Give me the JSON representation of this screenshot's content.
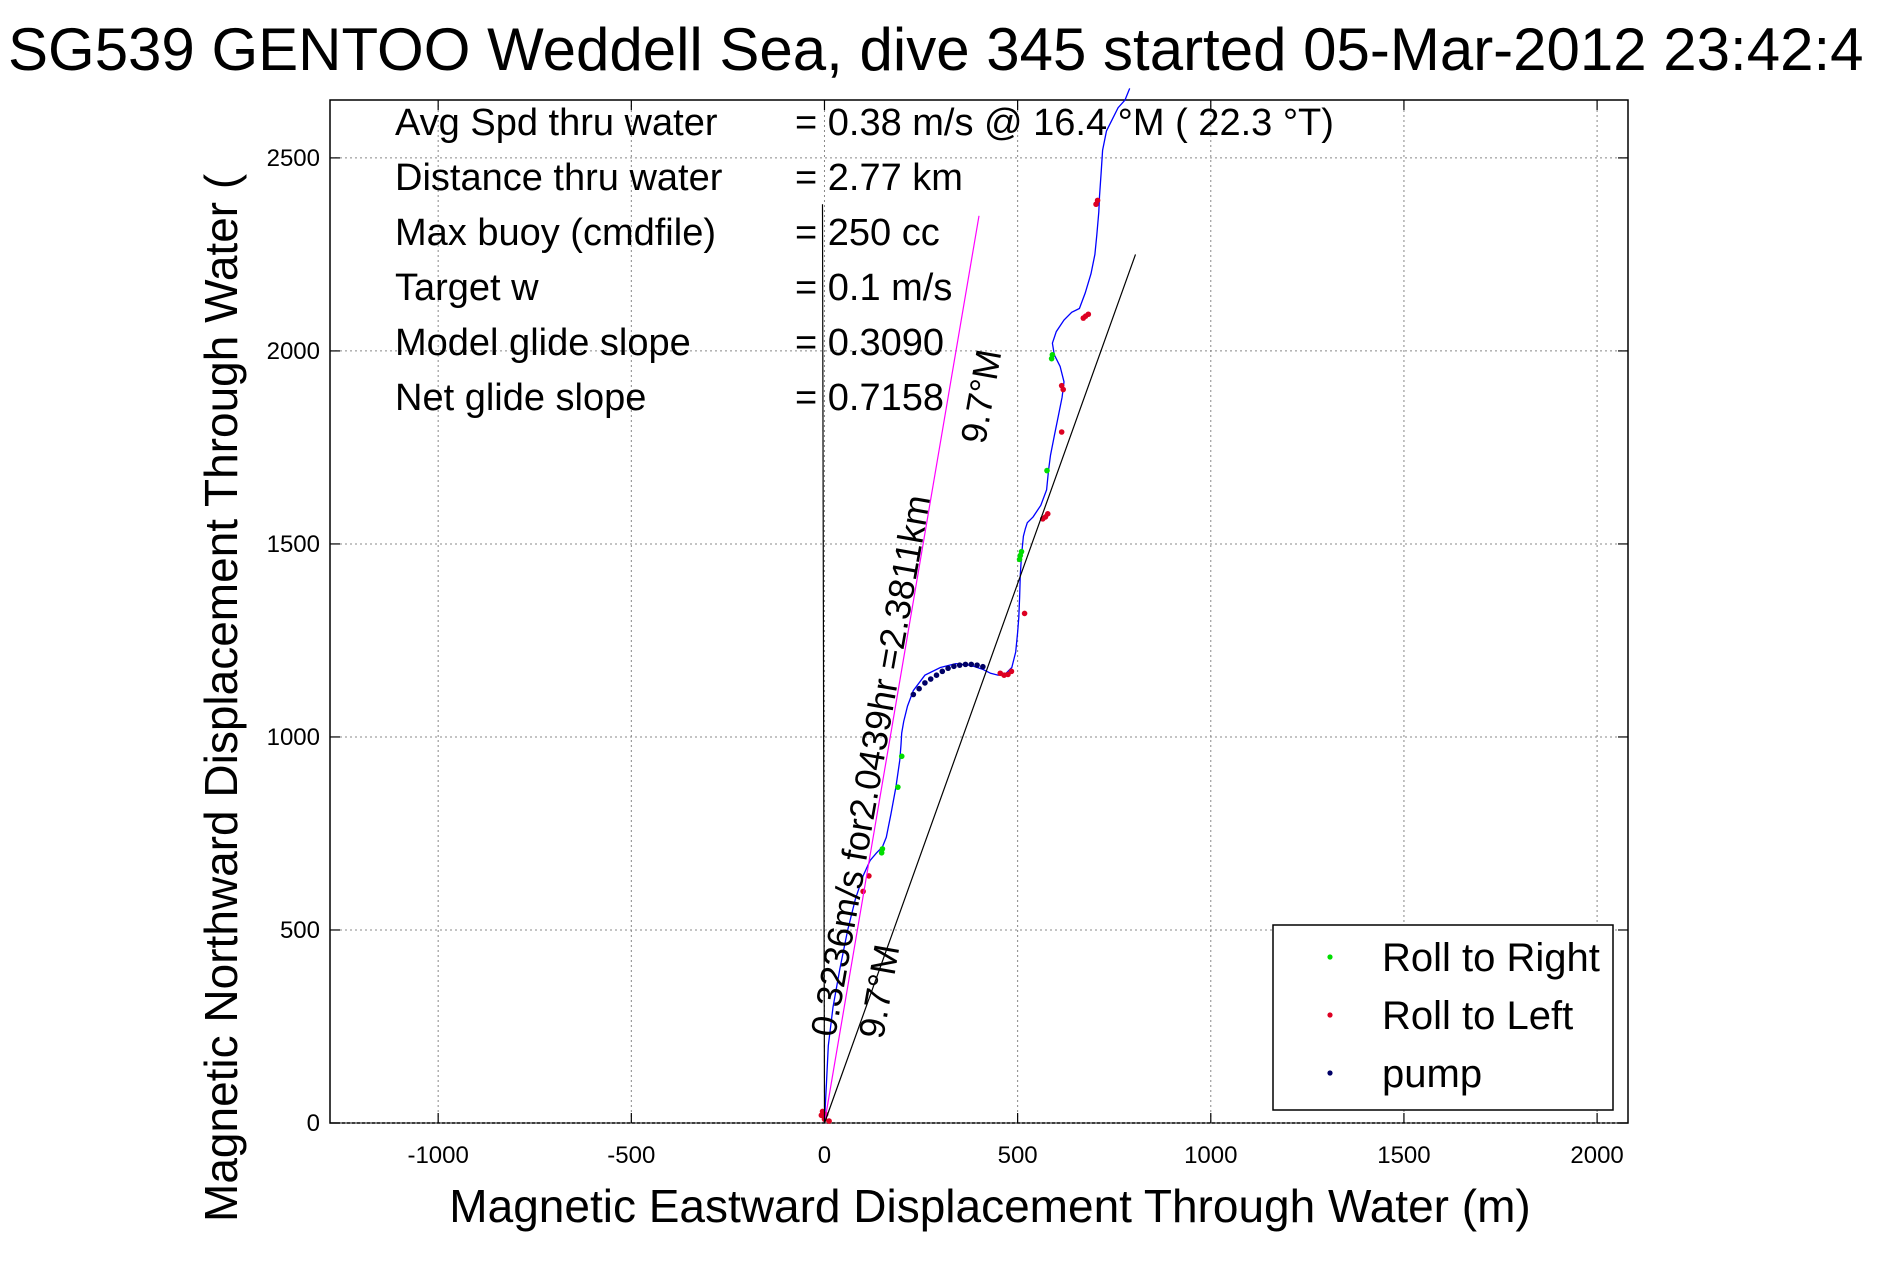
{
  "chart_data": {
    "type": "line",
    "title": "SG539 GENTOO Weddell Sea, dive 345 started 05-Mar-2012 23:42:4",
    "xlabel": "Magnetic Eastward Displacement Through Water (m)",
    "ylabel": "Magnetic Northward Displacement Through Water (m)",
    "ylabel_visible": "Magnetic Northward Displacement Through Water (",
    "xlim": [
      -1280,
      2080
    ],
    "ylim": [
      0,
      2650
    ],
    "xticks": [
      -1000,
      -500,
      0,
      500,
      1000,
      1500,
      2000
    ],
    "xtick_labels": [
      "-1000",
      "-500",
      "0",
      "500",
      "1000",
      "1500",
      "2000"
    ],
    "yticks": [
      0,
      500,
      1000,
      1500,
      2000,
      2500
    ],
    "ytick_labels": [
      "0",
      "500",
      "1000",
      "1500",
      "2000",
      "2500"
    ],
    "grid": true,
    "legend_position": "bottom-right",
    "stats": [
      {
        "label": "Avg Spd thru water",
        "value": "=  0.38 m/s @  16.4 °M ( 22.3 °T)"
      },
      {
        "label": "Distance thru water",
        "value": "=  2.77 km"
      },
      {
        "label": "Max buoy (cmdfile)",
        "value": "= 250 cc"
      },
      {
        "label": "Target w",
        "value": "= 0.1 m/s"
      },
      {
        "label": "Model glide slope",
        "value": "= 0.3090"
      },
      {
        "label": "Net glide slope",
        "value": "= 0.7158"
      }
    ],
    "annotations": [
      {
        "text": "0.3236m/s for2.0439hr =2.3811km",
        "anchor": [
          0,
          0
        ],
        "angle_deg": 9.7
      },
      {
        "text": "9.7°M",
        "anchor": [
          400,
          2350
        ],
        "angle_deg": 9.7
      },
      {
        "text": "9.7°M",
        "anchor": [
          0,
          0
        ],
        "angle_deg": 9.7
      }
    ],
    "series": [
      {
        "name": "track",
        "style": "line",
        "color": "#0000ff",
        "x": [
          0,
          2,
          5,
          10,
          22,
          40,
          60,
          80,
          100,
          118,
          135,
          150,
          160,
          172,
          185,
          195,
          198,
          200,
          205,
          215,
          230,
          260,
          300,
          340,
          380,
          410,
          430,
          450,
          470,
          485,
          495,
          500,
          503,
          505,
          507,
          510,
          515,
          520,
          525,
          530,
          540,
          560,
          575,
          580,
          585,
          595,
          605,
          615,
          620,
          610,
          595,
          590,
          600,
          620,
          640,
          660,
          675,
          690,
          700,
          705,
          710,
          712,
          716,
          720,
          730,
          745,
          760,
          778,
          790
        ],
        "y": [
          0,
          40,
          100,
          200,
          300,
          400,
          500,
          580,
          640,
          680,
          700,
          715,
          740,
          800,
          870,
          940,
          980,
          1010,
          1040,
          1080,
          1120,
          1160,
          1180,
          1190,
          1185,
          1175,
          1165,
          1160,
          1165,
          1180,
          1220,
          1270,
          1310,
          1360,
          1420,
          1470,
          1520,
          1540,
          1555,
          1560,
          1570,
          1600,
          1640,
          1690,
          1730,
          1780,
          1830,
          1880,
          1920,
          1960,
          1990,
          2020,
          2050,
          2080,
          2100,
          2110,
          2150,
          2200,
          2250,
          2300,
          2360,
          2400,
          2460,
          2520,
          2570,
          2600,
          2630,
          2650,
          2680
        ]
      },
      {
        "name": "Roll to Right",
        "style": "points",
        "color": "#00dd00",
        "x": [
          148,
          150,
          190,
          200,
          505,
          507,
          510,
          576,
          588,
          590
        ],
        "y": [
          700,
          710,
          870,
          950,
          1460,
          1470,
          1480,
          1690,
          1980,
          1990
        ]
      },
      {
        "name": "Roll to Left",
        "style": "points",
        "color": "#dd0022",
        "x": [
          -8,
          -5,
          0,
          3,
          12,
          100,
          115,
          455,
          465,
          475,
          484,
          518,
          565,
          572,
          578,
          614,
          618,
          614,
          670,
          676,
          683,
          703,
          707
        ],
        "y": [
          20,
          30,
          10,
          22,
          5,
          600,
          640,
          1165,
          1160,
          1162,
          1170,
          1320,
          1565,
          1570,
          1578,
          1790,
          1900,
          1910,
          2085,
          2090,
          2095,
          2380,
          2390
        ]
      },
      {
        "name": "pump",
        "style": "points",
        "color": "#000066",
        "x": [
          230,
          245,
          260,
          275,
          290,
          305,
          320,
          335,
          350,
          365,
          380,
          395,
          410
        ],
        "y": [
          1110,
          1125,
          1140,
          1150,
          1160,
          1170,
          1178,
          1183,
          1186,
          1188,
          1188,
          1186,
          1182
        ]
      },
      {
        "name": "model heading line",
        "style": "line",
        "color": "#ff00ff",
        "x": [
          0,
          400
        ],
        "y": [
          0,
          2350
        ]
      },
      {
        "name": "net heading line",
        "style": "line",
        "color": "#000000",
        "x": [
          0,
          805
        ],
        "y": [
          0,
          2250
        ]
      },
      {
        "name": "vertical reference",
        "style": "line",
        "color": "#000000",
        "x": [
          0,
          -5
        ],
        "y": [
          0,
          2380
        ]
      }
    ],
    "legend": [
      {
        "label": "Roll to Right",
        "color": "#00dd00"
      },
      {
        "label": "Roll to Left",
        "color": "#dd0022"
      },
      {
        "label": "pump",
        "color": "#000066"
      }
    ]
  }
}
